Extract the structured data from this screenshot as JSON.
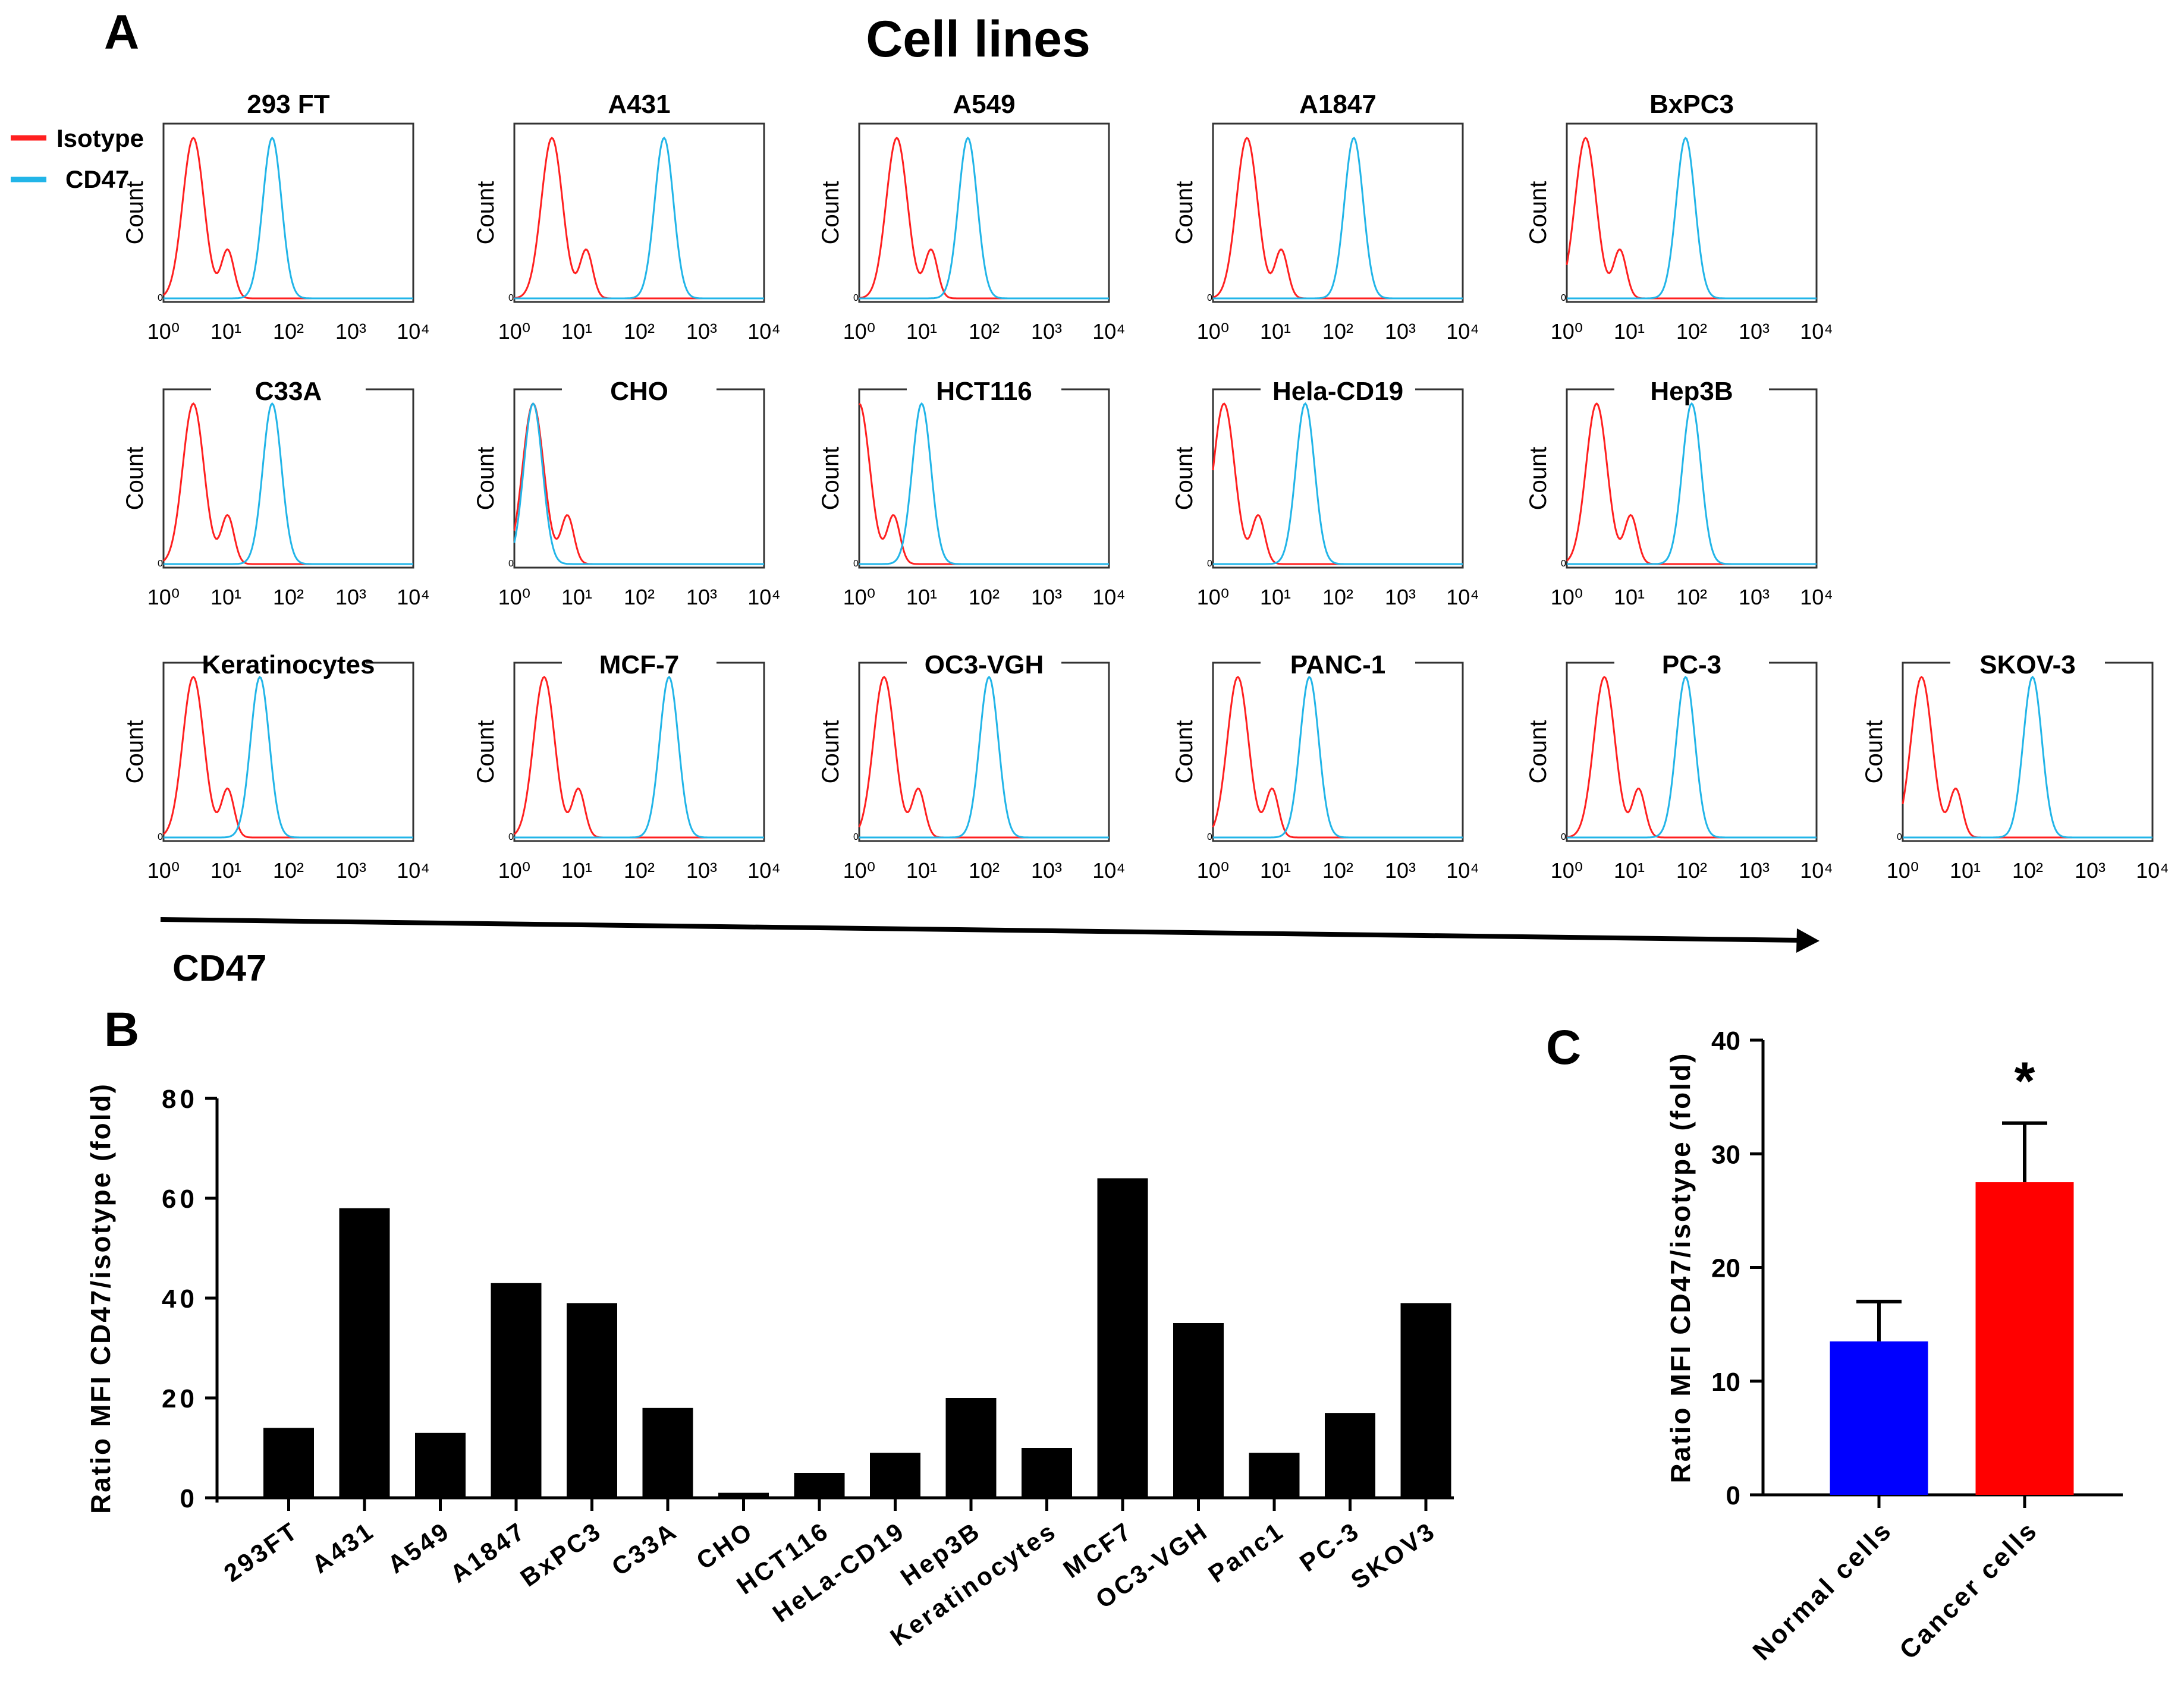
{
  "panel_letters": {
    "a": "A",
    "b": "B",
    "c": "C"
  },
  "figure_title": "Cell lines",
  "legend": {
    "items": [
      {
        "label": "Isotype",
        "color": "#ff2020"
      },
      {
        "label": "CD47",
        "color": "#22b5e8"
      }
    ]
  },
  "colors": {
    "isotype": "#ff2020",
    "cd47": "#22b5e8",
    "normal": "#0000ff",
    "cancer": "#ff0000",
    "bar": "#000000"
  },
  "panel_a": {
    "y_label": "Count",
    "x_ticks": [
      "10⁰",
      "10¹",
      "10²",
      "10³",
      "10⁴"
    ],
    "axis_arrow_label": "CD47"
  },
  "chart_data": [
    {
      "type": "line",
      "panel": "A",
      "description_free": true,
      "x_scale": "log",
      "xlim": [
        1,
        10000
      ],
      "ylabel": "Count",
      "histograms": [
        {
          "name": "293 FT",
          "isotype_peak": 3,
          "cd47_peak": 55
        },
        {
          "name": "A431",
          "isotype_peak": 4,
          "cd47_peak": 250
        },
        {
          "name": "A549",
          "isotype_peak": 4,
          "cd47_peak": 55
        },
        {
          "name": "A1847",
          "isotype_peak": 3.5,
          "cd47_peak": 180
        },
        {
          "name": "BxPC3",
          "isotype_peak": 2,
          "cd47_peak": 80
        },
        {
          "name": "C33A",
          "isotype_peak": 3,
          "cd47_peak": 55
        },
        {
          "name": "CHO",
          "isotype_peak": 2,
          "cd47_peak": 2
        },
        {
          "name": "HCT116",
          "isotype_peak": 1,
          "cd47_peak": 10
        },
        {
          "name": "Hela-CD19",
          "isotype_peak": 1.5,
          "cd47_peak": 30
        },
        {
          "name": "Hep3B",
          "isotype_peak": 3,
          "cd47_peak": 100
        },
        {
          "name": "Keratinocytes",
          "isotype_peak": 3,
          "cd47_peak": 35
        },
        {
          "name": "MCF-7",
          "isotype_peak": 3,
          "cd47_peak": 300
        },
        {
          "name": "OC3-VGH",
          "isotype_peak": 2.5,
          "cd47_peak": 120
        },
        {
          "name": "PANC-1",
          "isotype_peak": 2.5,
          "cd47_peak": 35
        },
        {
          "name": "PC-3",
          "isotype_peak": 4,
          "cd47_peak": 80
        },
        {
          "name": "SKOV-3",
          "isotype_peak": 2,
          "cd47_peak": 120
        }
      ]
    },
    {
      "type": "bar",
      "panel": "B",
      "ylabel": "Ratio MFI CD47/isotype (fold)",
      "ylim": [
        0,
        80
      ],
      "yticks": [
        0,
        20,
        40,
        60,
        80
      ],
      "categories": [
        "293FT",
        "A431",
        "A549",
        "A1847",
        "BxPC3",
        "C33A",
        "CHO",
        "HCT116",
        "HeLa-CD19",
        "Hep3B",
        "Keratinocytes",
        "MCF7",
        "OC3-VGH",
        "Panc1",
        "PC-3",
        "SKOV3"
      ],
      "values": [
        14,
        58,
        13,
        43,
        39,
        18,
        1,
        5,
        9,
        20,
        10,
        64,
        35,
        9,
        17,
        39
      ]
    },
    {
      "type": "bar",
      "panel": "C",
      "ylabel": "Ratio MFI CD47/isotype (fold)",
      "ylim": [
        0,
        40
      ],
      "yticks": [
        0,
        10,
        20,
        30,
        40
      ],
      "categories": [
        "Normal cells",
        "Cancer cells"
      ],
      "values": [
        13.5,
        27.5
      ],
      "error": [
        3.5,
        5.2
      ],
      "significance": [
        "",
        "*"
      ]
    }
  ]
}
